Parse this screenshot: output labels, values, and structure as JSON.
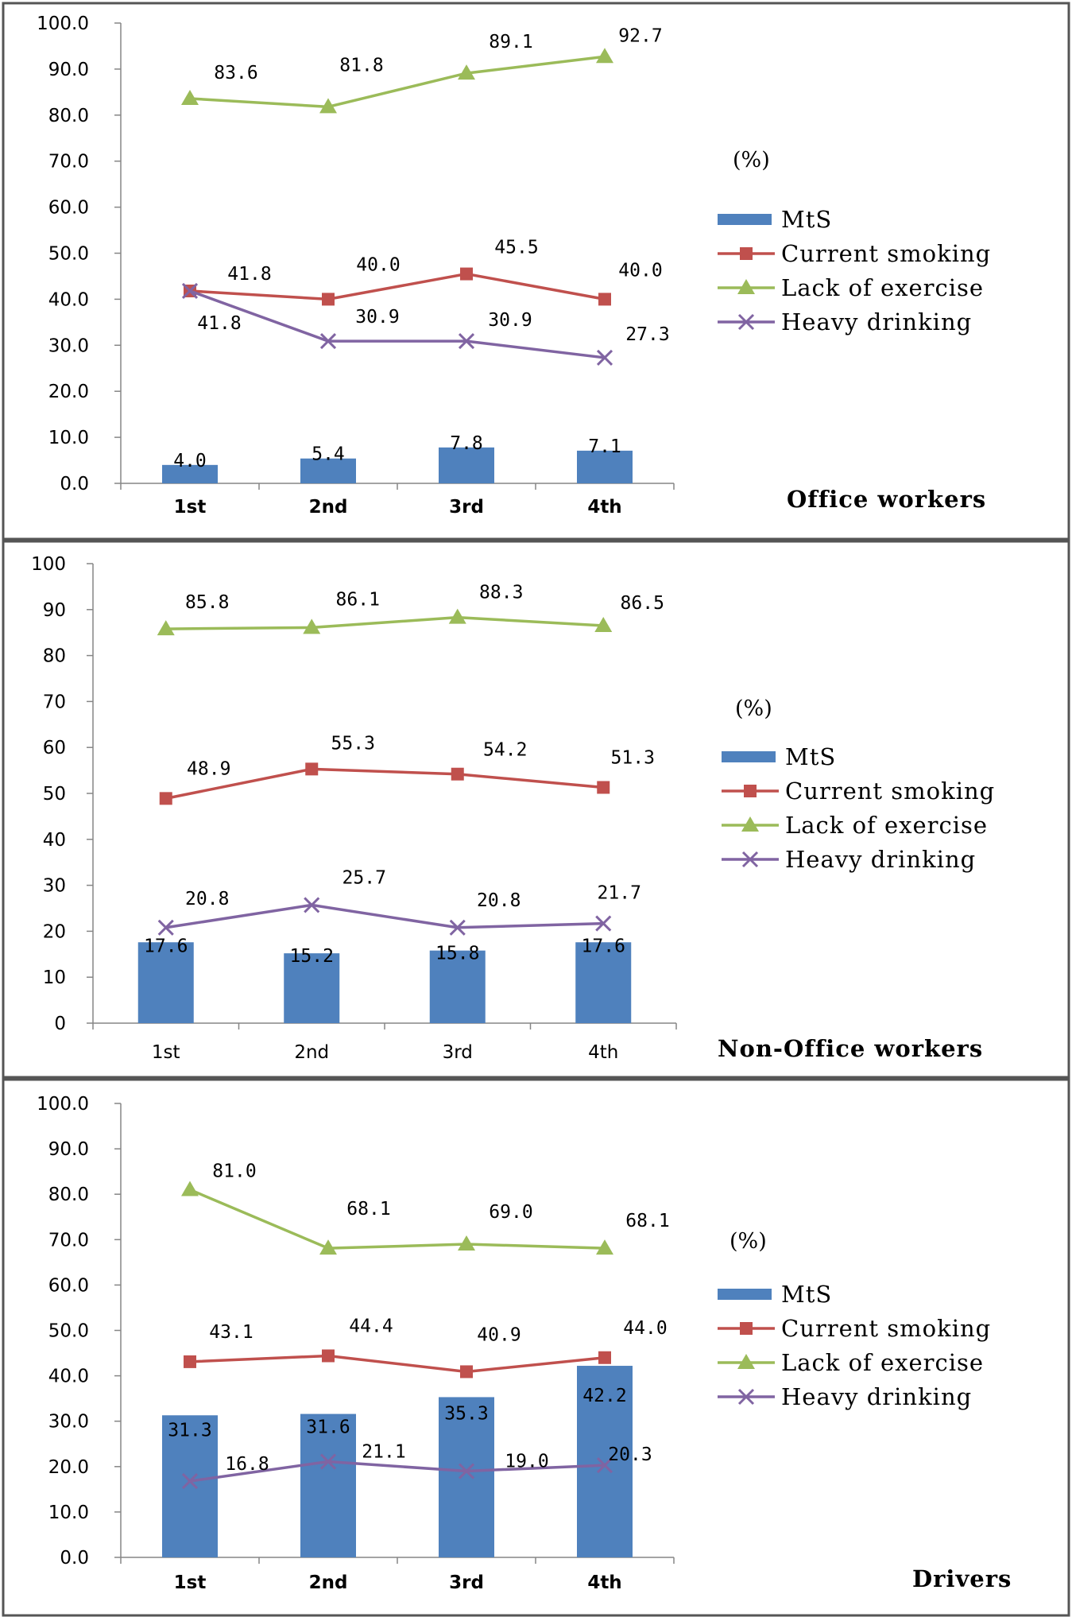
{
  "colors": {
    "mts": "#4F81BD",
    "current_smoking": "#C0504D",
    "lack_of_exercise": "#9BBB59",
    "heavy_drinking": "#8064A2"
  },
  "chart_data": [
    {
      "type": "bar+line",
      "title": "Office workers",
      "unit": "(%)",
      "categories": [
        "1st",
        "2nd",
        "3rd",
        "4th"
      ],
      "ylim": [
        0,
        100
      ],
      "y_ticks": [
        "0.0",
        "10.0",
        "20.0",
        "30.0",
        "40.0",
        "50.0",
        "60.0",
        "70.0",
        "80.0",
        "90.0",
        "100.0"
      ],
      "legend_position": "right",
      "series": [
        {
          "name": "MtS",
          "kind": "bar",
          "values": [
            4.0,
            5.4,
            7.8,
            7.1
          ],
          "labels": [
            "4.0",
            "5.4",
            "7.8",
            "7.1"
          ]
        },
        {
          "name": "Current smoking",
          "kind": "line",
          "marker": "square",
          "values": [
            41.8,
            40.0,
            45.5,
            40.0
          ],
          "labels": [
            "41.8",
            "40.0",
            "45.5",
            "40.0"
          ]
        },
        {
          "name": "Lack of exercise",
          "kind": "line",
          "marker": "triangle",
          "values": [
            83.6,
            81.8,
            89.1,
            92.7
          ],
          "labels": [
            "83.6",
            "81.8",
            "89.1",
            "92.7"
          ]
        },
        {
          "name": "Heavy drinking",
          "kind": "line",
          "marker": "x",
          "values": [
            41.8,
            30.9,
            30.9,
            27.3
          ],
          "labels": [
            "41.8",
            "30.9",
            "30.9",
            "27.3"
          ]
        }
      ]
    },
    {
      "type": "bar+line",
      "title": "Non-Office workers",
      "unit": "(%)",
      "categories": [
        "1st",
        "2nd",
        "3rd",
        "4th"
      ],
      "ylim": [
        0,
        100
      ],
      "y_ticks": [
        "0",
        "10",
        "20",
        "30",
        "40",
        "50",
        "60",
        "70",
        "80",
        "90",
        "100"
      ],
      "legend_position": "right",
      "series": [
        {
          "name": "MtS",
          "kind": "bar",
          "values": [
            17.6,
            15.2,
            15.8,
            17.6
          ],
          "labels": [
            "17.6",
            "15.2",
            "15.8",
            "17.6"
          ]
        },
        {
          "name": "Current smoking",
          "kind": "line",
          "marker": "square",
          "values": [
            48.9,
            55.3,
            54.2,
            51.3
          ],
          "labels": [
            "48.9",
            "55.3",
            "54.2",
            "51.3"
          ]
        },
        {
          "name": "Lack of exercise",
          "kind": "line",
          "marker": "triangle",
          "values": [
            85.8,
            86.1,
            88.3,
            86.5
          ],
          "labels": [
            "85.8",
            "86.1",
            "88.3",
            "86.5"
          ]
        },
        {
          "name": "Heavy drinking",
          "kind": "line",
          "marker": "x",
          "values": [
            20.8,
            25.7,
            20.8,
            21.7
          ],
          "labels": [
            "20.8",
            "25.7",
            "20.8",
            "21.7"
          ]
        }
      ]
    },
    {
      "type": "bar+line",
      "title": "Drivers",
      "unit": "(%)",
      "categories": [
        "1st",
        "2nd",
        "3rd",
        "4th"
      ],
      "ylim": [
        0,
        100
      ],
      "y_ticks": [
        "0.0",
        "10.0",
        "20.0",
        "30.0",
        "40.0",
        "50.0",
        "60.0",
        "70.0",
        "80.0",
        "90.0",
        "100.0"
      ],
      "legend_position": "right",
      "series": [
        {
          "name": "MtS",
          "kind": "bar",
          "values": [
            31.3,
            31.6,
            35.3,
            42.2
          ],
          "labels": [
            "31.3",
            "31.6",
            "35.3",
            "42.2"
          ]
        },
        {
          "name": "Current smoking",
          "kind": "line",
          "marker": "square",
          "values": [
            43.1,
            44.4,
            40.9,
            44.0
          ],
          "labels": [
            "43.1",
            "44.4",
            "40.9",
            "44.0"
          ]
        },
        {
          "name": "Lack of exercise",
          "kind": "line",
          "marker": "triangle",
          "values": [
            81.0,
            68.1,
            69.0,
            68.1
          ],
          "labels": [
            "81.0",
            "68.1",
            "69.0",
            "68.1"
          ]
        },
        {
          "name": "Heavy drinking",
          "kind": "line",
          "marker": "x",
          "values": [
            16.8,
            21.1,
            19.0,
            20.3
          ],
          "labels": [
            "16.8",
            "21.1",
            "19.0",
            "20.3"
          ]
        }
      ]
    }
  ]
}
